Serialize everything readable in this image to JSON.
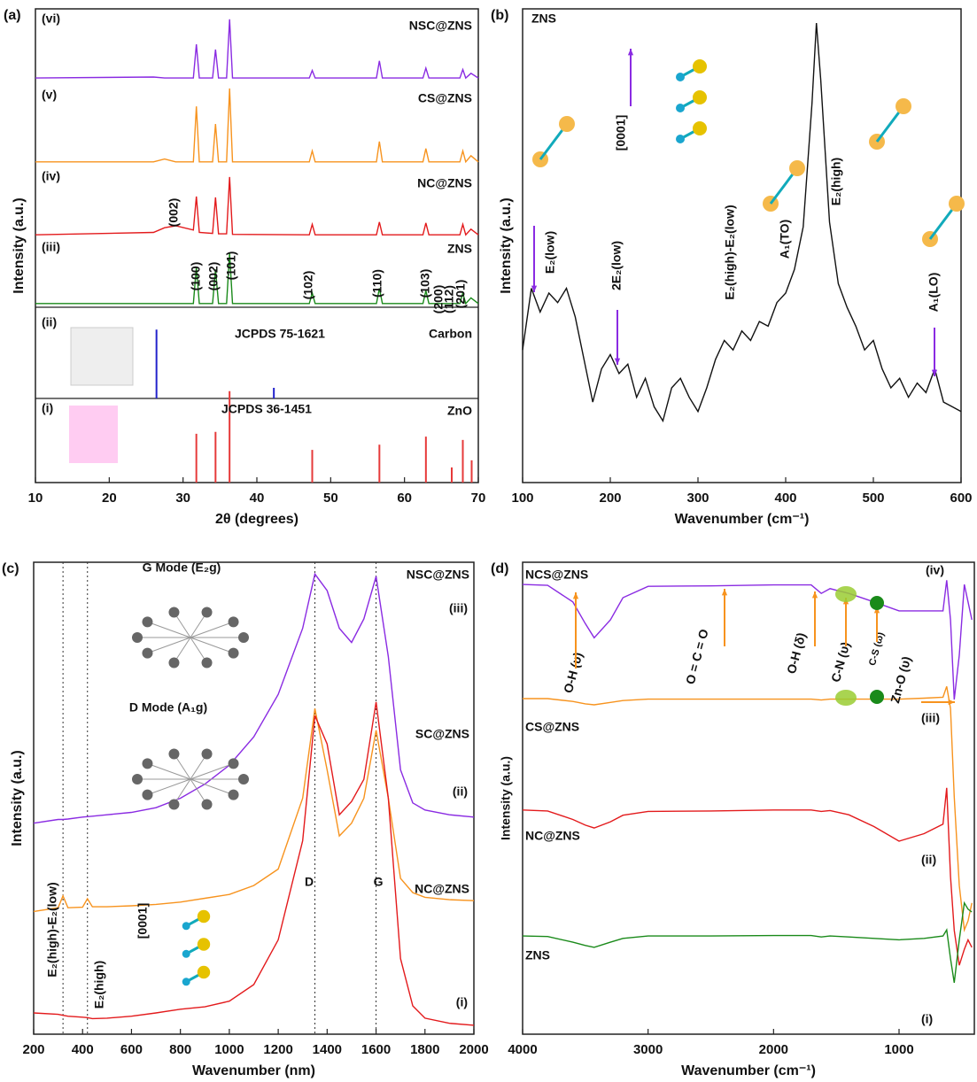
{
  "chart_data": [
    {
      "type": "line",
      "panel": "(a)",
      "x_label": "2θ (degrees)",
      "y_label": "Intensity (a.u.)",
      "xlim": [
        10,
        70
      ],
      "xticks": [
        10,
        20,
        30,
        40,
        50,
        60,
        70
      ],
      "ylim": [
        0,
        100
      ],
      "x": [
        10,
        26,
        27.5,
        29,
        31.4,
        31.8,
        32.2,
        34.0,
        34.4,
        34.8,
        35.9,
        36.3,
        36.7,
        47.1,
        47.5,
        47.9,
        56.2,
        56.6,
        57.0,
        62.5,
        62.9,
        63.3,
        67.5,
        67.9,
        68.3,
        69.0,
        70
      ],
      "series": [
        {
          "name": "NSC@ZNS",
          "tag": "(vi)",
          "color": "#8a2be2",
          "values": [
            85.4,
            85.6,
            85.4,
            85.4,
            85.4,
            92.5,
            85.4,
            85.4,
            91.4,
            85.4,
            85.4,
            97.8,
            85.4,
            85.4,
            87,
            85.4,
            85.4,
            89,
            85.4,
            85.4,
            87.5,
            85.4,
            85.4,
            87.2,
            85.4,
            86.4,
            85.4
          ]
        },
        {
          "name": "CS@ZNS",
          "tag": "(v)",
          "color": "#f7931e",
          "values": [
            67.7,
            67.7,
            68.3,
            67.7,
            67.7,
            79.4,
            67.7,
            67.7,
            75.7,
            67.7,
            67.7,
            83.2,
            67.7,
            67.7,
            70,
            67.7,
            67.7,
            72,
            67.7,
            67.7,
            70.5,
            67.7,
            67.7,
            70,
            67.7,
            69,
            67.7
          ]
        },
        {
          "name": "NC@ZNS",
          "tag": "(iv)",
          "color": "#e31a1c",
          "values": [
            52.3,
            52.8,
            53.8,
            54.2,
            53.3,
            60.4,
            52.8,
            52.6,
            60.2,
            52.5,
            52.5,
            64.5,
            52.4,
            52.3,
            54.5,
            52.3,
            52.3,
            55,
            52.3,
            52.3,
            54.8,
            52.3,
            52.3,
            54.5,
            52.3,
            53.5,
            52.3
          ]
        },
        {
          "name": "ZNS",
          "tag": "(iii)",
          "color": "#1a8a1a",
          "values": [
            37.8,
            37.8,
            37.8,
            37.8,
            37.8,
            45.5,
            37.8,
            37.8,
            45,
            37.8,
            37.8,
            48.4,
            37.8,
            37.8,
            40,
            37.8,
            37.8,
            41,
            37.8,
            37.8,
            40.5,
            37.8,
            37.8,
            40,
            37.8,
            39,
            37.8
          ]
        },
        {
          "name": "Carbon",
          "tag": "(ii)",
          "reference": "JCPDS 75-1621",
          "style": "stick",
          "color": "#2222cc",
          "x": [
            26.4,
            42.3
          ],
          "values": [
            32.3,
            20
          ]
        },
        {
          "name": "ZnO",
          "tag": "(i)",
          "reference": "JCPDS 36-1451",
          "style": "stick",
          "color": "#e63a3a",
          "x": [
            31.8,
            34.4,
            36.3,
            47.5,
            56.6,
            62.9,
            66.4,
            67.9,
            69.1
          ],
          "values": [
            10.3,
            10.7,
            19.3,
            6.9,
            8,
            9.7,
            3.2,
            9,
            4.7
          ]
        }
      ],
      "annotations": [
        "(002)",
        "(100)",
        "(002)",
        "(101)",
        "(102)",
        "(110)",
        "(103)",
        "(200)",
        "(112)",
        "(201)"
      ]
    },
    {
      "type": "line",
      "panel": "(b)",
      "x_label": "Wavenumber (cm⁻¹)",
      "y_label": "Intensity (a.u.)",
      "xlim": [
        100,
        600
      ],
      "xticks": [
        100,
        200,
        300,
        400,
        500,
        600
      ],
      "ylim": [
        0,
        100
      ],
      "x": [
        100,
        110,
        120,
        130,
        140,
        150,
        160,
        170,
        180,
        190,
        200,
        210,
        220,
        230,
        240,
        250,
        260,
        270,
        280,
        290,
        300,
        310,
        320,
        330,
        340,
        350,
        360,
        370,
        380,
        390,
        400,
        410,
        420,
        430,
        435,
        440,
        450,
        460,
        470,
        480,
        490,
        500,
        510,
        520,
        530,
        540,
        550,
        560,
        570,
        580,
        590,
        600
      ],
      "series": [
        {
          "name": "ZNS",
          "color": "#111111",
          "values": [
            28,
            41,
            36,
            40,
            38,
            41,
            35,
            26,
            17,
            24,
            27,
            23,
            25,
            18,
            22,
            16,
            13,
            20,
            22,
            18,
            15,
            20,
            26,
            30,
            28,
            32,
            30,
            34,
            33,
            38,
            40,
            45,
            54,
            80,
            97,
            85,
            55,
            42,
            37,
            33,
            28,
            30,
            24,
            20,
            22,
            18,
            21,
            19,
            24,
            17,
            16,
            15
          ]
        }
      ],
      "annotations": [
        "E₂(low)",
        "2E₂(low)",
        "E₂(high)-E₂(low)",
        "A₁(TO)",
        "E₂(high)",
        "A₁(LO)",
        "[0001]"
      ]
    },
    {
      "type": "line",
      "panel": "(c)",
      "x_label": "Wavenumber (nm)",
      "y_label": "Intensity (a.u.)",
      "xlim": [
        200,
        2000
      ],
      "xticks": [
        200,
        400,
        600,
        800,
        1000,
        1200,
        1400,
        1600,
        1800,
        2000
      ],
      "ylim": [
        0,
        100
      ],
      "reference_lines": [
        320,
        420,
        1350,
        1600
      ],
      "x": [
        200,
        300,
        320,
        340,
        400,
        420,
        440,
        500,
        600,
        700,
        800,
        900,
        1000,
        1100,
        1200,
        1300,
        1350,
        1400,
        1450,
        1500,
        1550,
        1600,
        1650,
        1700,
        1750,
        1800,
        1900,
        2000
      ],
      "series": [
        {
          "name": "NSC@ZNS",
          "tag": "(iii)",
          "color": "#8a2be2",
          "values": [
            44.7,
            45.5,
            45.5,
            45.6,
            46,
            46.1,
            46.2,
            46.5,
            47,
            48,
            50,
            53,
            57,
            63,
            72,
            86,
            97.5,
            94,
            86,
            83,
            88,
            97,
            80,
            56,
            49,
            47.5,
            46.5,
            46
          ]
        },
        {
          "name": "SC@ZNS",
          "tag": "(ii)",
          "color": "#f7931e",
          "values": [
            26,
            26.8,
            29.3,
            26.8,
            26.9,
            28.7,
            27,
            27,
            27.2,
            27.5,
            28,
            28.8,
            29.6,
            31.5,
            35,
            50,
            69,
            56,
            42,
            44.7,
            50,
            64.4,
            50,
            33,
            30,
            29,
            28.5,
            28.3
          ]
        },
        {
          "name": "NC@ZNS",
          "tag": "(i)",
          "color": "#e31a1c",
          "values": [
            4.5,
            4.2,
            4,
            3.8,
            3.6,
            3.5,
            3.3,
            3.4,
            3.8,
            4.5,
            5.3,
            5.8,
            7,
            10.5,
            20,
            41,
            67.5,
            61.5,
            46.5,
            49.3,
            54,
            70.4,
            50,
            16,
            6,
            3.4,
            2.3,
            1.9
          ]
        }
      ],
      "annotations": [
        "D",
        "G",
        "G Mode (E₂g)",
        "D Mode (A₁g)",
        "E₂(high)-E₂(low)",
        "E₂(high)",
        "[0001]"
      ]
    },
    {
      "type": "line",
      "panel": "(d)",
      "x_label": "Wavenumber (cm⁻¹)",
      "y_label": "Intensity (a.u.)",
      "xlim": [
        4000,
        400
      ],
      "xticks": [
        4000,
        3000,
        2000,
        1000
      ],
      "ylim": [
        0,
        100
      ],
      "x": [
        4000,
        3800,
        3600,
        3500,
        3430,
        3300,
        3200,
        3000,
        2500,
        2000,
        1700,
        1620,
        1550,
        1400,
        1200,
        1000,
        800,
        650,
        620,
        590,
        560,
        520,
        480,
        450,
        420
      ],
      "series": [
        {
          "name": "NCS@ZNS",
          "tag": "(iv)",
          "color": "#8a2be2",
          "values": [
            95.3,
            95.1,
            91.6,
            87,
            84,
            87.8,
            92.5,
            94.9,
            95,
            95.2,
            95.2,
            93.4,
            94.4,
            93.4,
            91.6,
            89.7,
            89.7,
            89.7,
            96.2,
            87.8,
            70.9,
            80.3,
            95.3,
            91.6,
            87.8
          ]
        },
        {
          "name": "CS@ZNS",
          "tag": "(iii)",
          "color": "#f7931e",
          "values": [
            71.1,
            71.1,
            70.5,
            70,
            69.8,
            70.3,
            70.7,
            71,
            71,
            71,
            71,
            70.8,
            71,
            71,
            71,
            71,
            71.2,
            71.4,
            73.7,
            69,
            50.3,
            31.5,
            22.1,
            24,
            27.8
          ]
        },
        {
          "name": "NC@ZNS",
          "tag": "(ii)",
          "color": "#e31a1c",
          "values": [
            47.5,
            47.3,
            45.5,
            44.3,
            43.7,
            45,
            46.4,
            47.2,
            47.3,
            47.5,
            47.5,
            47.2,
            47.4,
            46.5,
            44,
            40.9,
            42.5,
            44.5,
            52.2,
            33.4,
            22,
            14.6,
            18,
            20,
            18.4
          ]
        },
        {
          "name": "ZNS",
          "tag": "(i)",
          "color": "#1a8a1a",
          "values": [
            20.8,
            20.7,
            19.5,
            18.8,
            18.4,
            19.5,
            20.3,
            20.8,
            20.8,
            20.9,
            20.9,
            20.6,
            20.8,
            20.6,
            20.3,
            20,
            20.3,
            20.8,
            22.1,
            16,
            10.9,
            20,
            27.8,
            26.5,
            25.9
          ]
        }
      ],
      "annotations": [
        "O-H (υ)",
        "O = C = O",
        "O-H (δ)",
        "C-N (υ)",
        "C-S (ω)",
        "Zn-O (υ)"
      ]
    }
  ]
}
